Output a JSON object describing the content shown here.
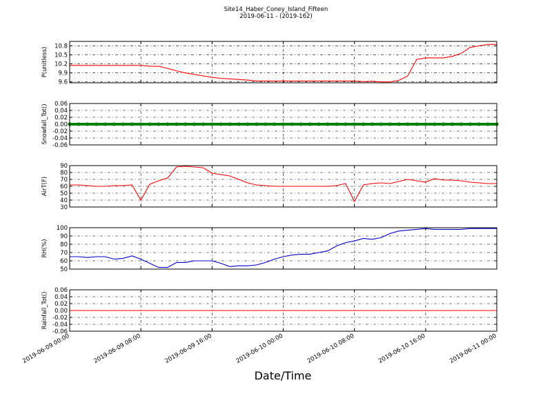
{
  "chart_data": {
    "title": "Site14_Haber_Coney_Island_Fifteen",
    "subtitle": "2019-06-11 - (2019-162)",
    "x_label": "Date/Time",
    "x": [
      "2019-06-09 00:00",
      "2019-06-09 01:00",
      "2019-06-09 02:00",
      "2019-06-09 03:00",
      "2019-06-09 04:00",
      "2019-06-09 05:00",
      "2019-06-09 06:00",
      "2019-06-09 07:00",
      "2019-06-09 08:00",
      "2019-06-09 09:00",
      "2019-06-09 10:00",
      "2019-06-09 11:00",
      "2019-06-09 12:00",
      "2019-06-09 13:00",
      "2019-06-09 14:00",
      "2019-06-09 15:00",
      "2019-06-09 16:00",
      "2019-06-09 17:00",
      "2019-06-09 18:00",
      "2019-06-09 19:00",
      "2019-06-09 20:00",
      "2019-06-09 21:00",
      "2019-06-09 22:00",
      "2019-06-09 23:00",
      "2019-06-10 00:00",
      "2019-06-10 01:00",
      "2019-06-10 02:00",
      "2019-06-10 03:00",
      "2019-06-10 04:00",
      "2019-06-10 05:00",
      "2019-06-10 06:00",
      "2019-06-10 07:00",
      "2019-06-10 08:00",
      "2019-06-10 09:00",
      "2019-06-10 10:00",
      "2019-06-10 11:00",
      "2019-06-10 12:00",
      "2019-06-10 13:00",
      "2019-06-10 14:00",
      "2019-06-10 15:00",
      "2019-06-10 16:00",
      "2019-06-10 17:00",
      "2019-06-10 18:00",
      "2019-06-10 19:00",
      "2019-06-10 20:00",
      "2019-06-10 21:00",
      "2019-06-10 22:00",
      "2019-06-10 23:00",
      "2019-06-11 00:00"
    ],
    "xlim": [
      "2019-06-09 00:00",
      "2019-06-11 00:00"
    ],
    "xticks": [
      "2019-06-09 00:00",
      "2019-06-09 08:00",
      "2019-06-09 16:00",
      "2019-06-10 00:00",
      "2019-06-10 08:00",
      "2019-06-10 16:00",
      "2019-06-11 00:00"
    ],
    "grid": true,
    "panels": [
      {
        "type": "line",
        "ylabel": "P(unitless)",
        "color": "#ff0000",
        "ylim": [
          9.57,
          10.95
        ],
        "yticks": [
          9.6,
          9.9,
          10.2,
          10.5,
          10.8
        ],
        "values": [
          10.15,
          10.15,
          10.15,
          10.15,
          10.15,
          10.15,
          10.15,
          10.15,
          10.15,
          10.12,
          10.12,
          10.05,
          9.97,
          9.9,
          9.85,
          9.8,
          9.75,
          9.72,
          9.7,
          9.68,
          9.66,
          9.63,
          9.63,
          9.63,
          9.63,
          9.63,
          9.63,
          9.63,
          9.63,
          9.63,
          9.63,
          9.63,
          9.63,
          9.61,
          9.62,
          9.6,
          9.6,
          9.65,
          9.8,
          10.35,
          10.4,
          10.4,
          10.4,
          10.45,
          10.55,
          10.75,
          10.8,
          10.85,
          10.85
        ]
      },
      {
        "type": "scatter",
        "ylabel": "Snowfall_Tot()",
        "color": "#008000",
        "ylim": [
          -0.06,
          0.06
        ],
        "yticks": [
          {
            "value": -0.06,
            "label": "-0.06"
          },
          {
            "value": -0.04,
            "label": "-0.04"
          },
          {
            "value": -0.02,
            "label": "-0.02"
          },
          {
            "value": 0,
            "label": "0.00"
          },
          {
            "value": 0.02,
            "label": "0.02"
          },
          {
            "value": 0.04,
            "label": "0.04"
          },
          {
            "value": 0.06,
            "label": "0.06"
          }
        ],
        "values": [
          0,
          0,
          0,
          0,
          0,
          0,
          0,
          0,
          0,
          0,
          0,
          0,
          0,
          0,
          0,
          0,
          0,
          0,
          0,
          0,
          0,
          0,
          0,
          0,
          0,
          0,
          0,
          0,
          0,
          0,
          0,
          0,
          0,
          0,
          0,
          0,
          0,
          0,
          0,
          0,
          0,
          0,
          0,
          0,
          0,
          0,
          0,
          0,
          0
        ]
      },
      {
        "type": "line",
        "ylabel": "AirT(F)",
        "color": "#ff0000",
        "ylim": [
          30,
          90
        ],
        "yticks": [
          30,
          40,
          50,
          60,
          70,
          80,
          90
        ],
        "values": [
          62,
          62,
          61,
          60,
          60,
          61,
          61,
          62,
          40,
          63,
          68,
          72,
          88,
          89,
          88,
          87,
          79,
          77,
          75,
          70,
          65,
          62,
          61,
          60,
          60,
          60,
          60,
          60,
          60,
          60,
          61,
          64,
          38,
          62,
          64,
          65,
          64,
          67,
          70,
          68,
          66,
          71,
          69,
          69,
          68,
          66,
          65,
          64,
          64
        ]
      },
      {
        "type": "line",
        "ylabel": "RH(%)",
        "color": "#0000cc",
        "ylim": [
          50,
          100
        ],
        "yticks": [
          50,
          60,
          70,
          80,
          90,
          100
        ],
        "values": [
          65,
          65,
          64,
          65,
          65,
          62,
          63,
          66,
          62,
          57,
          52,
          52,
          58,
          58,
          60,
          60,
          60,
          57,
          53,
          54,
          54,
          55,
          58,
          62,
          65,
          67,
          68,
          68,
          70,
          72,
          78,
          82,
          84,
          87,
          86,
          88,
          93,
          96,
          97,
          98,
          99,
          98,
          98,
          98,
          98,
          99,
          99,
          99,
          99
        ]
      },
      {
        "type": "line",
        "ylabel": "Rainfall_Tot()",
        "color": "#ff0000",
        "ylim": [
          -0.06,
          0.06
        ],
        "yticks": [
          {
            "value": -0.06,
            "label": "-0.06"
          },
          {
            "value": -0.04,
            "label": "-0.04"
          },
          {
            "value": -0.02,
            "label": "-0.02"
          },
          {
            "value": 0,
            "label": "0.00"
          },
          {
            "value": 0.02,
            "label": "0.02"
          },
          {
            "value": 0.04,
            "label": "0.04"
          },
          {
            "value": 0.06,
            "label": "0.06"
          }
        ],
        "values": [
          0,
          0,
          0,
          0,
          0,
          0,
          0,
          0,
          0,
          0,
          0,
          0,
          0,
          0,
          0,
          0,
          0,
          0,
          0,
          0,
          0,
          0,
          0,
          0,
          0,
          0,
          0,
          0,
          0,
          0,
          0,
          0,
          0,
          0,
          0,
          0,
          0,
          0,
          0,
          0,
          0,
          0,
          0,
          0,
          0,
          0,
          0,
          0,
          0
        ]
      }
    ]
  }
}
